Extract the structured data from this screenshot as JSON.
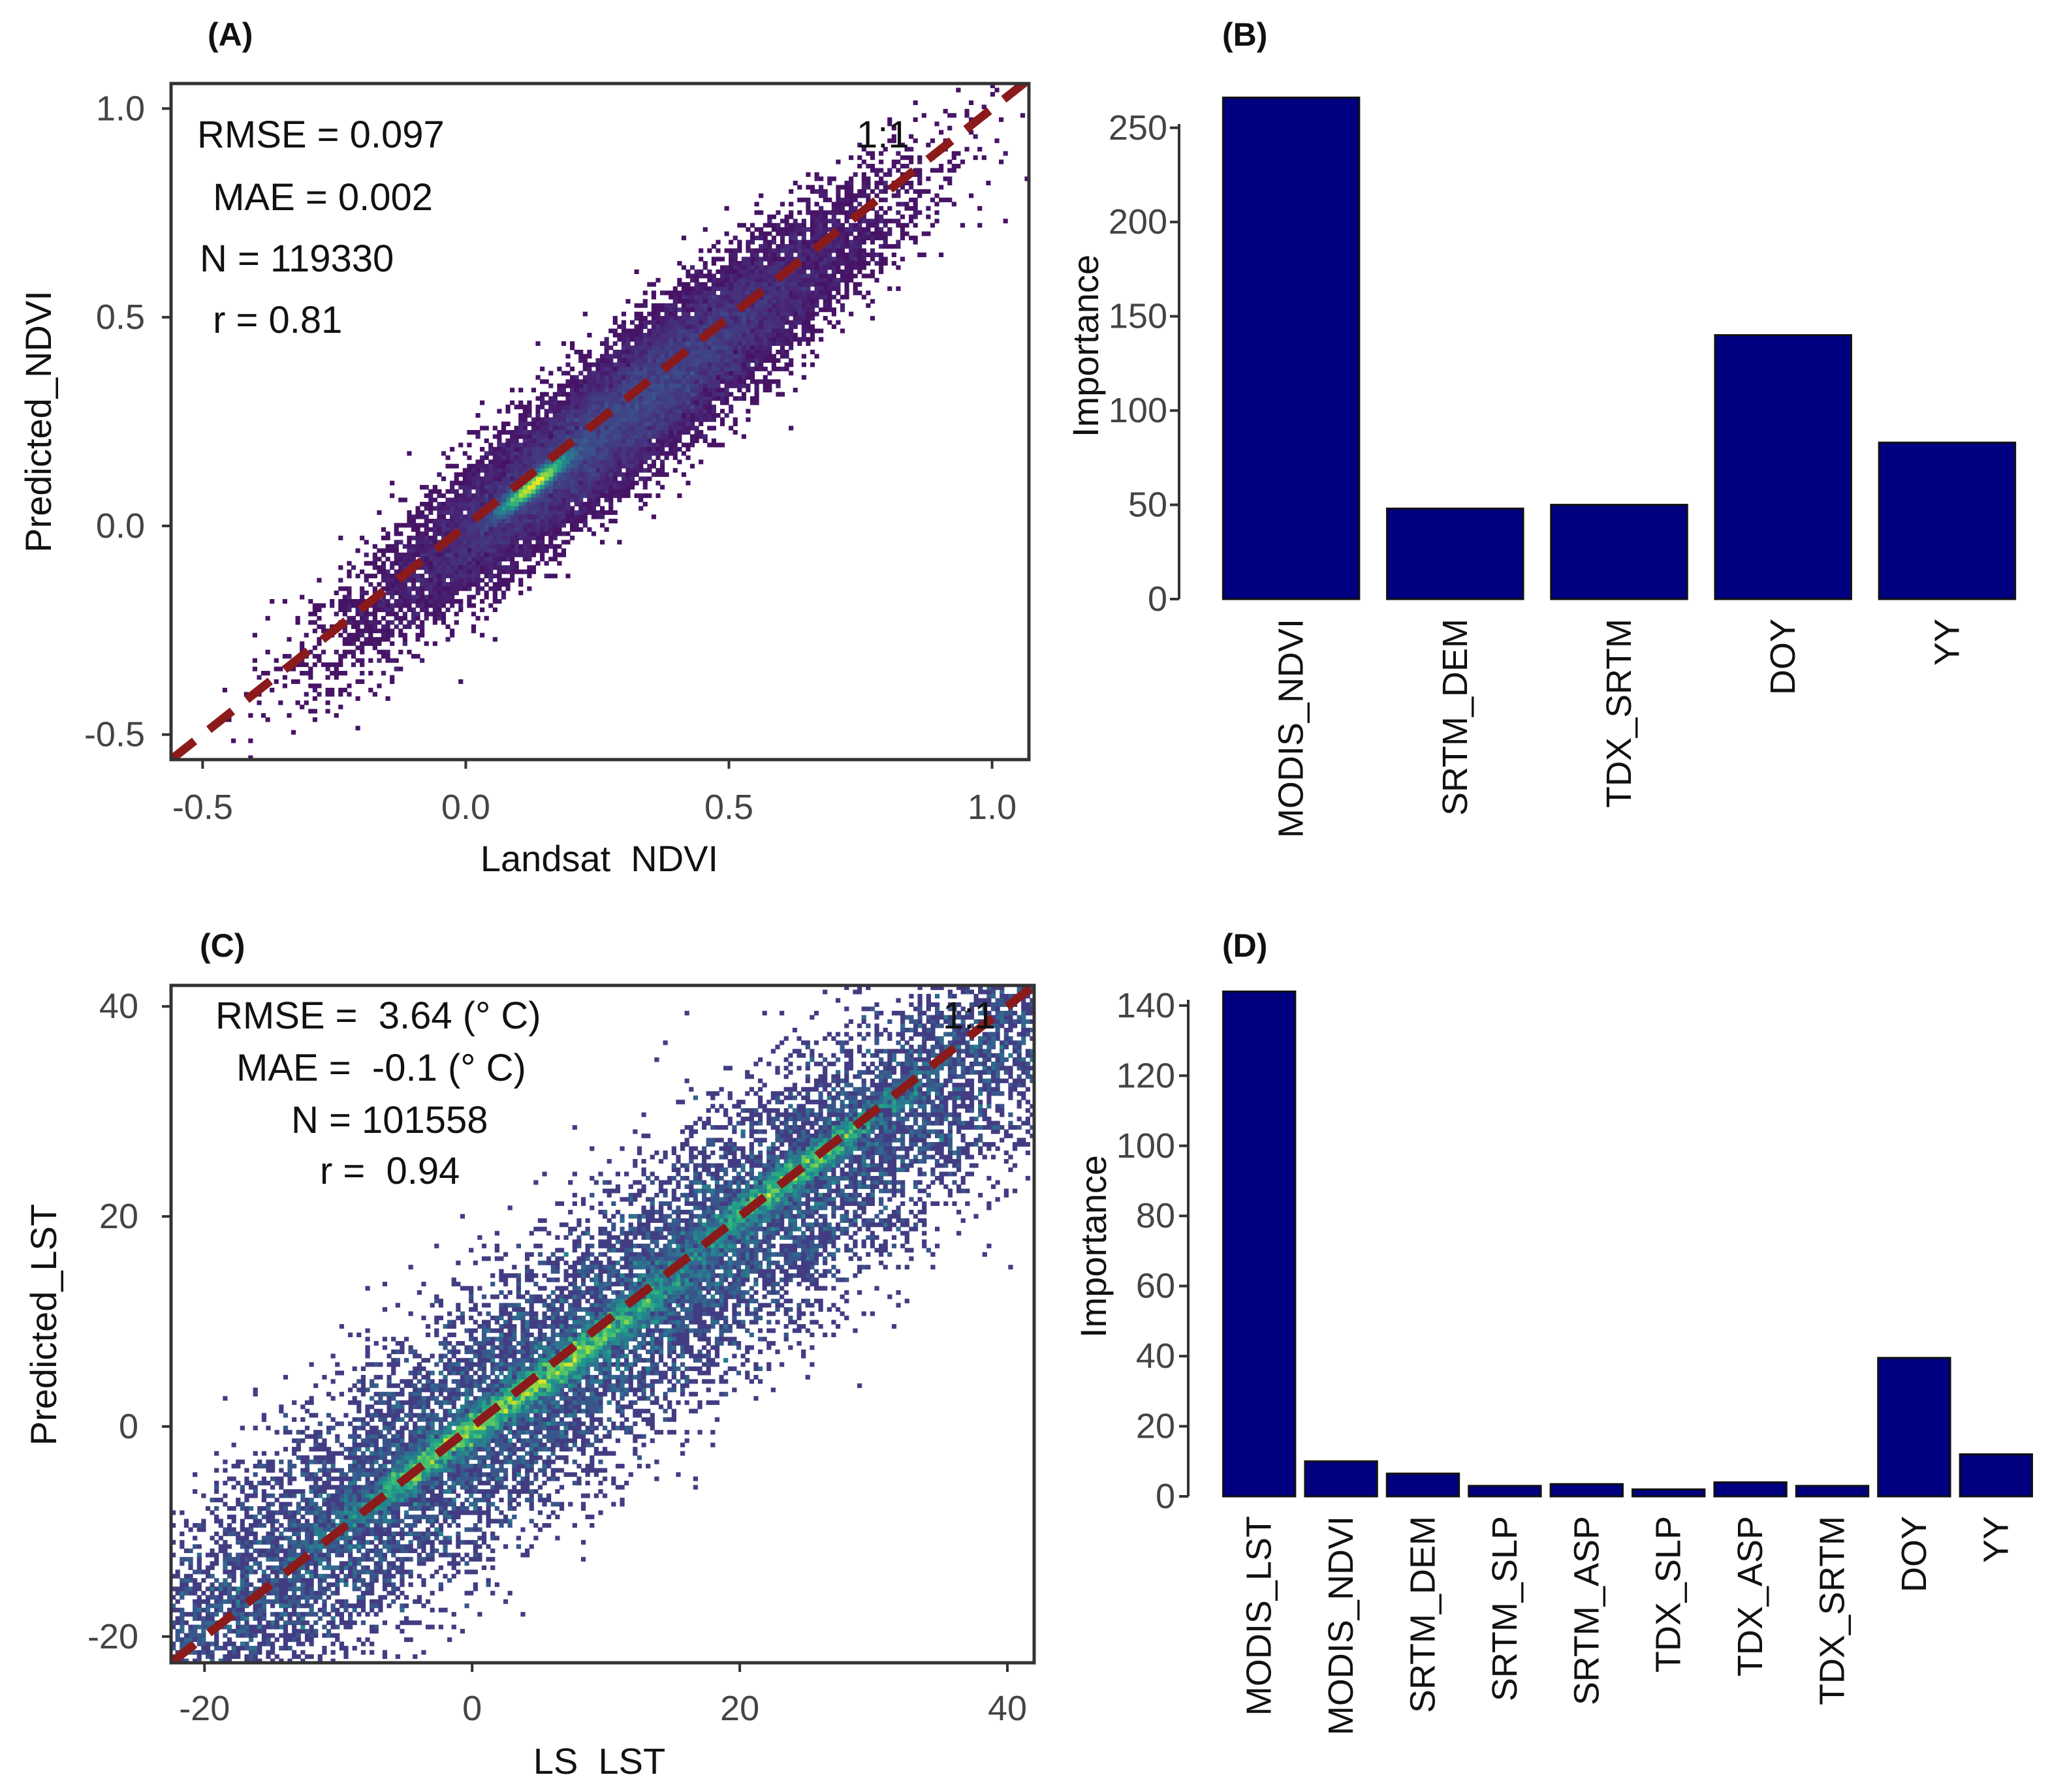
{
  "chart_data": [
    {
      "panel": "(A)",
      "type": "scatter",
      "style": "density-hexbin",
      "xlabel": "Landsat  NDVI",
      "ylabel": "Predicted_NDVI",
      "xlim": [
        -0.56,
        1.07
      ],
      "ylim": [
        -0.56,
        1.06
      ],
      "xticks": [
        -0.5,
        0.0,
        0.5,
        1.0
      ],
      "xtick_labels": [
        "-0.5",
        "0.0",
        "0.5",
        "1.0"
      ],
      "yticks": [
        -0.5,
        0.0,
        0.5,
        1.0
      ],
      "ytick_labels": [
        "-0.5",
        "0.0",
        "0.5",
        "1.0"
      ],
      "reference_line": {
        "label": "1:1",
        "slope": 1,
        "intercept": 0,
        "color": "#8b1a1a"
      },
      "annotations": [
        "RMSE = 0.097",
        " MAE = 0.002",
        "N = 119330",
        " r = 0.81"
      ],
      "density": {
        "n": 119330,
        "cloud_center": [
          0.3,
          0.27
        ],
        "peak": [
          0.13,
          0.1
        ],
        "spread": 0.1,
        "correlation": 0.81
      }
    },
    {
      "panel": "(B)",
      "type": "bar",
      "ylabel": "Importance",
      "categories": [
        "MODIS_NDVI",
        "SRTM_DEM",
        "TDX_SRTM",
        "DOY",
        "YY"
      ],
      "values": [
        266,
        48,
        50,
        140,
        83
      ],
      "ylim": [
        0,
        270
      ],
      "yticks": [
        0,
        50,
        100,
        150,
        200,
        250
      ],
      "bar_color": "#000080"
    },
    {
      "panel": "(C)",
      "type": "scatter",
      "style": "density-hexbin",
      "xlabel": "LS  LST",
      "ylabel": "Predicted_LST",
      "xlim": [
        -22.5,
        42
      ],
      "ylim": [
        -22.5,
        42
      ],
      "xticks": [
        -20,
        0,
        20,
        40
      ],
      "xtick_labels": [
        "-20",
        "0",
        "20",
        "40"
      ],
      "yticks": [
        -20,
        0,
        20,
        40
      ],
      "ytick_labels": [
        "-20",
        "0",
        "20",
        "40"
      ],
      "reference_line": {
        "label": "1:1",
        "slope": 1,
        "intercept": 0,
        "color": "#8b1a1a"
      },
      "annotations": [
        "RMSE =  3.64 (° C)",
        "MAE =  -0.1 (° C)",
        "N = 101558",
        "r =  0.94"
      ],
      "density": {
        "n": 101558,
        "cloud_center": [
          10,
          9
        ],
        "peaks": [
          [
            -2,
            -2
          ],
          [
            8,
            7
          ],
          [
            24,
            24
          ]
        ],
        "spread": 13,
        "correlation": 0.94
      }
    },
    {
      "panel": "(D)",
      "type": "bar",
      "ylabel": "Importance",
      "categories": [
        "MODIS_LST",
        "MODIS_NDVI",
        "SRTM_DEM",
        "SRTM_SLP",
        "SRTM_ASP",
        "TDX_SLP",
        "TDX_ASP",
        "TDX_SRTM",
        "DOY",
        "YY"
      ],
      "values": [
        144,
        10,
        6.5,
        3,
        3.5,
        2,
        4,
        3,
        39.5,
        12
      ],
      "ylim": [
        0,
        145
      ],
      "yticks": [
        0,
        20,
        40,
        60,
        80,
        100,
        120,
        140
      ],
      "bar_color": "#000080"
    }
  ]
}
